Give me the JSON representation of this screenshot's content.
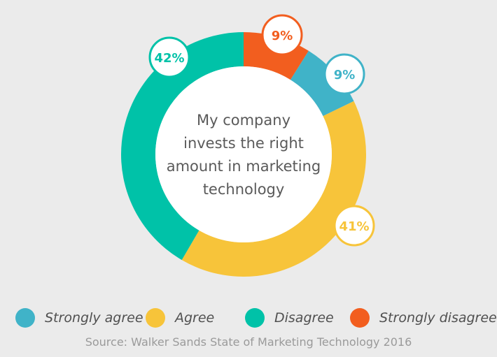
{
  "chart_data": {
    "type": "pie",
    "title": "My company invests the right amount in marketing technology",
    "slices": [
      {
        "label": "Strongly agree",
        "value": 9,
        "data_label": "9%",
        "color": "#40b3c8"
      },
      {
        "label": "Agree",
        "value": 41,
        "data_label": "41%",
        "color": "#f7c43a"
      },
      {
        "label": "Disagree",
        "value": 42,
        "data_label": "42%",
        "color": "#00c2a8"
      },
      {
        "label": "Strongly disagree",
        "value": 9,
        "data_label": "9%",
        "color": "#f25e1f"
      }
    ],
    "legend_position": "bottom",
    "source": "Source: Walker Sands State of Marketing Technology 2016"
  }
}
